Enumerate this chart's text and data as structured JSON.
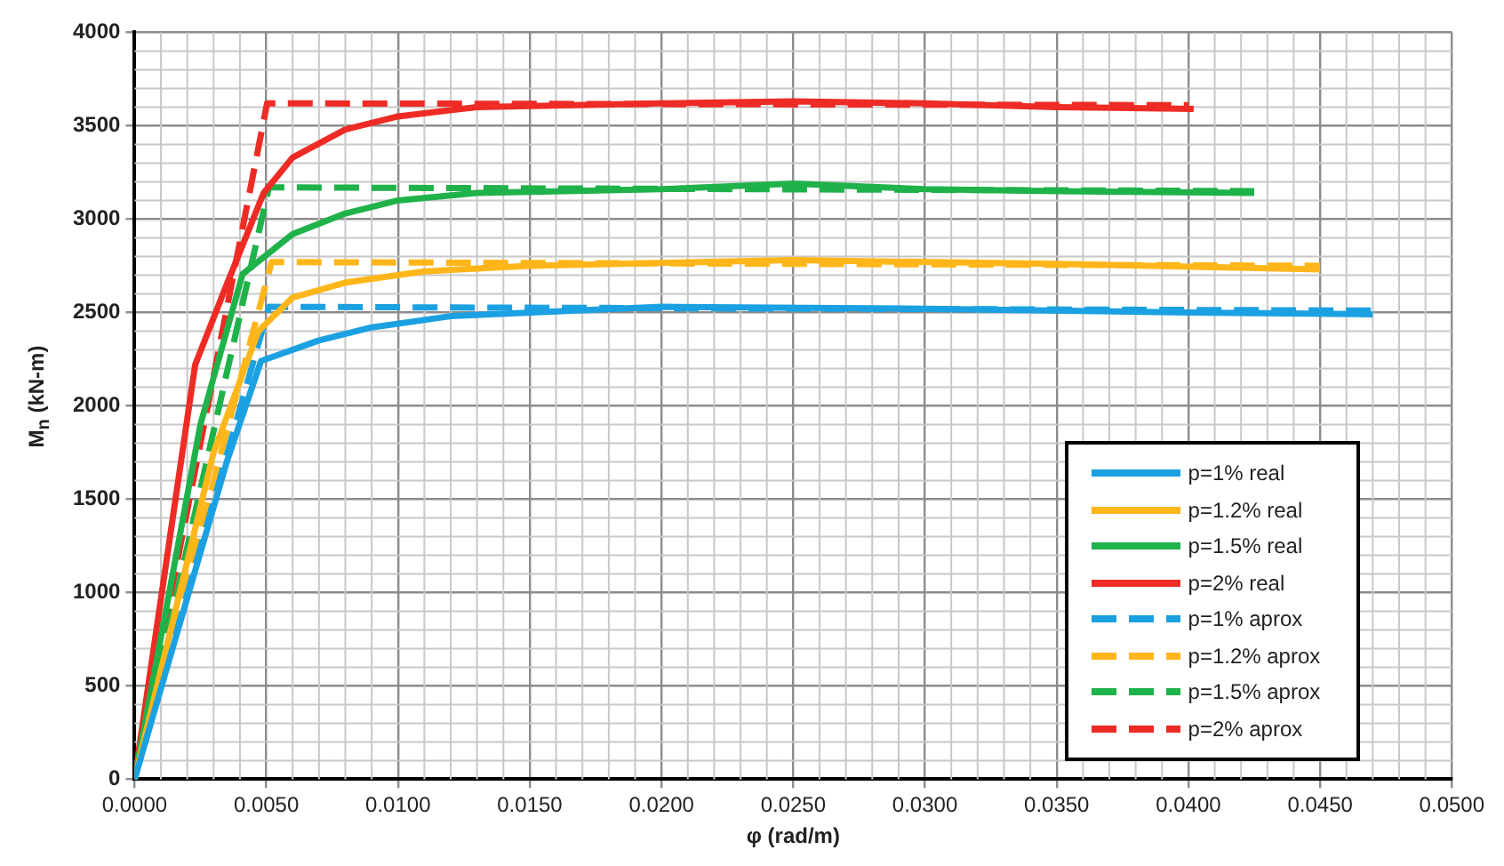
{
  "chart_data": {
    "type": "line",
    "xlabel": "φ (rad/m)",
    "ylabel": "M$_{n}$ (kN-m)",
    "xlim": [
      0,
      0.05
    ],
    "xticks": [
      {
        "value": 0,
        "label": "0.0000"
      },
      {
        "value": 0.005,
        "label": "0.0050"
      },
      {
        "value": 0.01,
        "label": "0.0100"
      },
      {
        "value": 0.015,
        "label": "0.0150"
      },
      {
        "value": 0.02,
        "label": "0.0200"
      },
      {
        "value": 0.025,
        "label": "0.0250"
      },
      {
        "value": 0.03,
        "label": "0.0300"
      },
      {
        "value": 0.035,
        "label": "0.0350"
      },
      {
        "value": 0.04,
        "label": "0.0400"
      },
      {
        "value": 0.045,
        "label": "0.0450"
      },
      {
        "value": 0.05,
        "label": "0.0500"
      }
    ],
    "ylim": [
      0,
      4000
    ],
    "yticks": [
      0,
      500,
      1000,
      1500,
      2000,
      2500,
      3000,
      3500,
      4000
    ],
    "grid": true,
    "legend": "bottom right",
    "marker": "none",
    "series": [
      {
        "name": "p=1% real",
        "color": "#1ba1e2",
        "line_style": "solid",
        "x": [
          0,
          0.0035,
          0.0048,
          0.007,
          0.009,
          0.012,
          0.02,
          0.03,
          0.04,
          0.047
        ],
        "values": [
          0,
          1700,
          2240,
          2350,
          2420,
          2480,
          2530,
          2520,
          2500,
          2490
        ]
      },
      {
        "name": "p=1.2% real",
        "color": "#ffb61a",
        "line_style": "solid",
        "x": [
          0,
          0.003,
          0.0047,
          0.006,
          0.008,
          0.011,
          0.015,
          0.025,
          0.035,
          0.045
        ],
        "values": [
          0,
          1750,
          2400,
          2580,
          2660,
          2720,
          2750,
          2780,
          2760,
          2730
        ]
      },
      {
        "name": "p=1.5% real",
        "color": "#1fb24a",
        "line_style": "solid",
        "x": [
          0,
          0.0025,
          0.0041,
          0.006,
          0.008,
          0.01,
          0.013,
          0.02,
          0.025,
          0.03,
          0.035,
          0.0425
        ],
        "values": [
          0,
          1900,
          2705,
          2920,
          3030,
          3100,
          3140,
          3160,
          3190,
          3160,
          3150,
          3140
        ]
      },
      {
        "name": "p=2% real",
        "color": "#ee2b24",
        "line_style": "solid",
        "x": [
          0,
          0.0023,
          0.0035,
          0.0049,
          0.006,
          0.008,
          0.01,
          0.013,
          0.02,
          0.025,
          0.03,
          0.035,
          0.0402
        ],
        "values": [
          0,
          2220,
          2650,
          3140,
          3330,
          3480,
          3550,
          3600,
          3620,
          3630,
          3620,
          3600,
          3590
        ]
      },
      {
        "name": "p=1% aprox",
        "color": "#1ba1e2",
        "line_style": "dashed",
        "x": [
          0,
          0.0051,
          0.047
        ],
        "values": [
          0,
          2530,
          2510
        ]
      },
      {
        "name": "p=1.2% aprox",
        "color": "#ffb61a",
        "line_style": "dashed",
        "x": [
          0,
          0.0052,
          0.045
        ],
        "values": [
          0,
          2770,
          2750
        ]
      },
      {
        "name": "p=1.5% aprox",
        "color": "#1fb24a",
        "line_style": "dashed",
        "x": [
          0,
          0.0051,
          0.0425
        ],
        "values": [
          0,
          3170,
          3150
        ]
      },
      {
        "name": "p=2% aprox",
        "color": "#ee2b24",
        "line_style": "dashed",
        "x": [
          0,
          0.00503,
          0.04
        ],
        "values": [
          0,
          3620,
          3610
        ]
      }
    ]
  }
}
